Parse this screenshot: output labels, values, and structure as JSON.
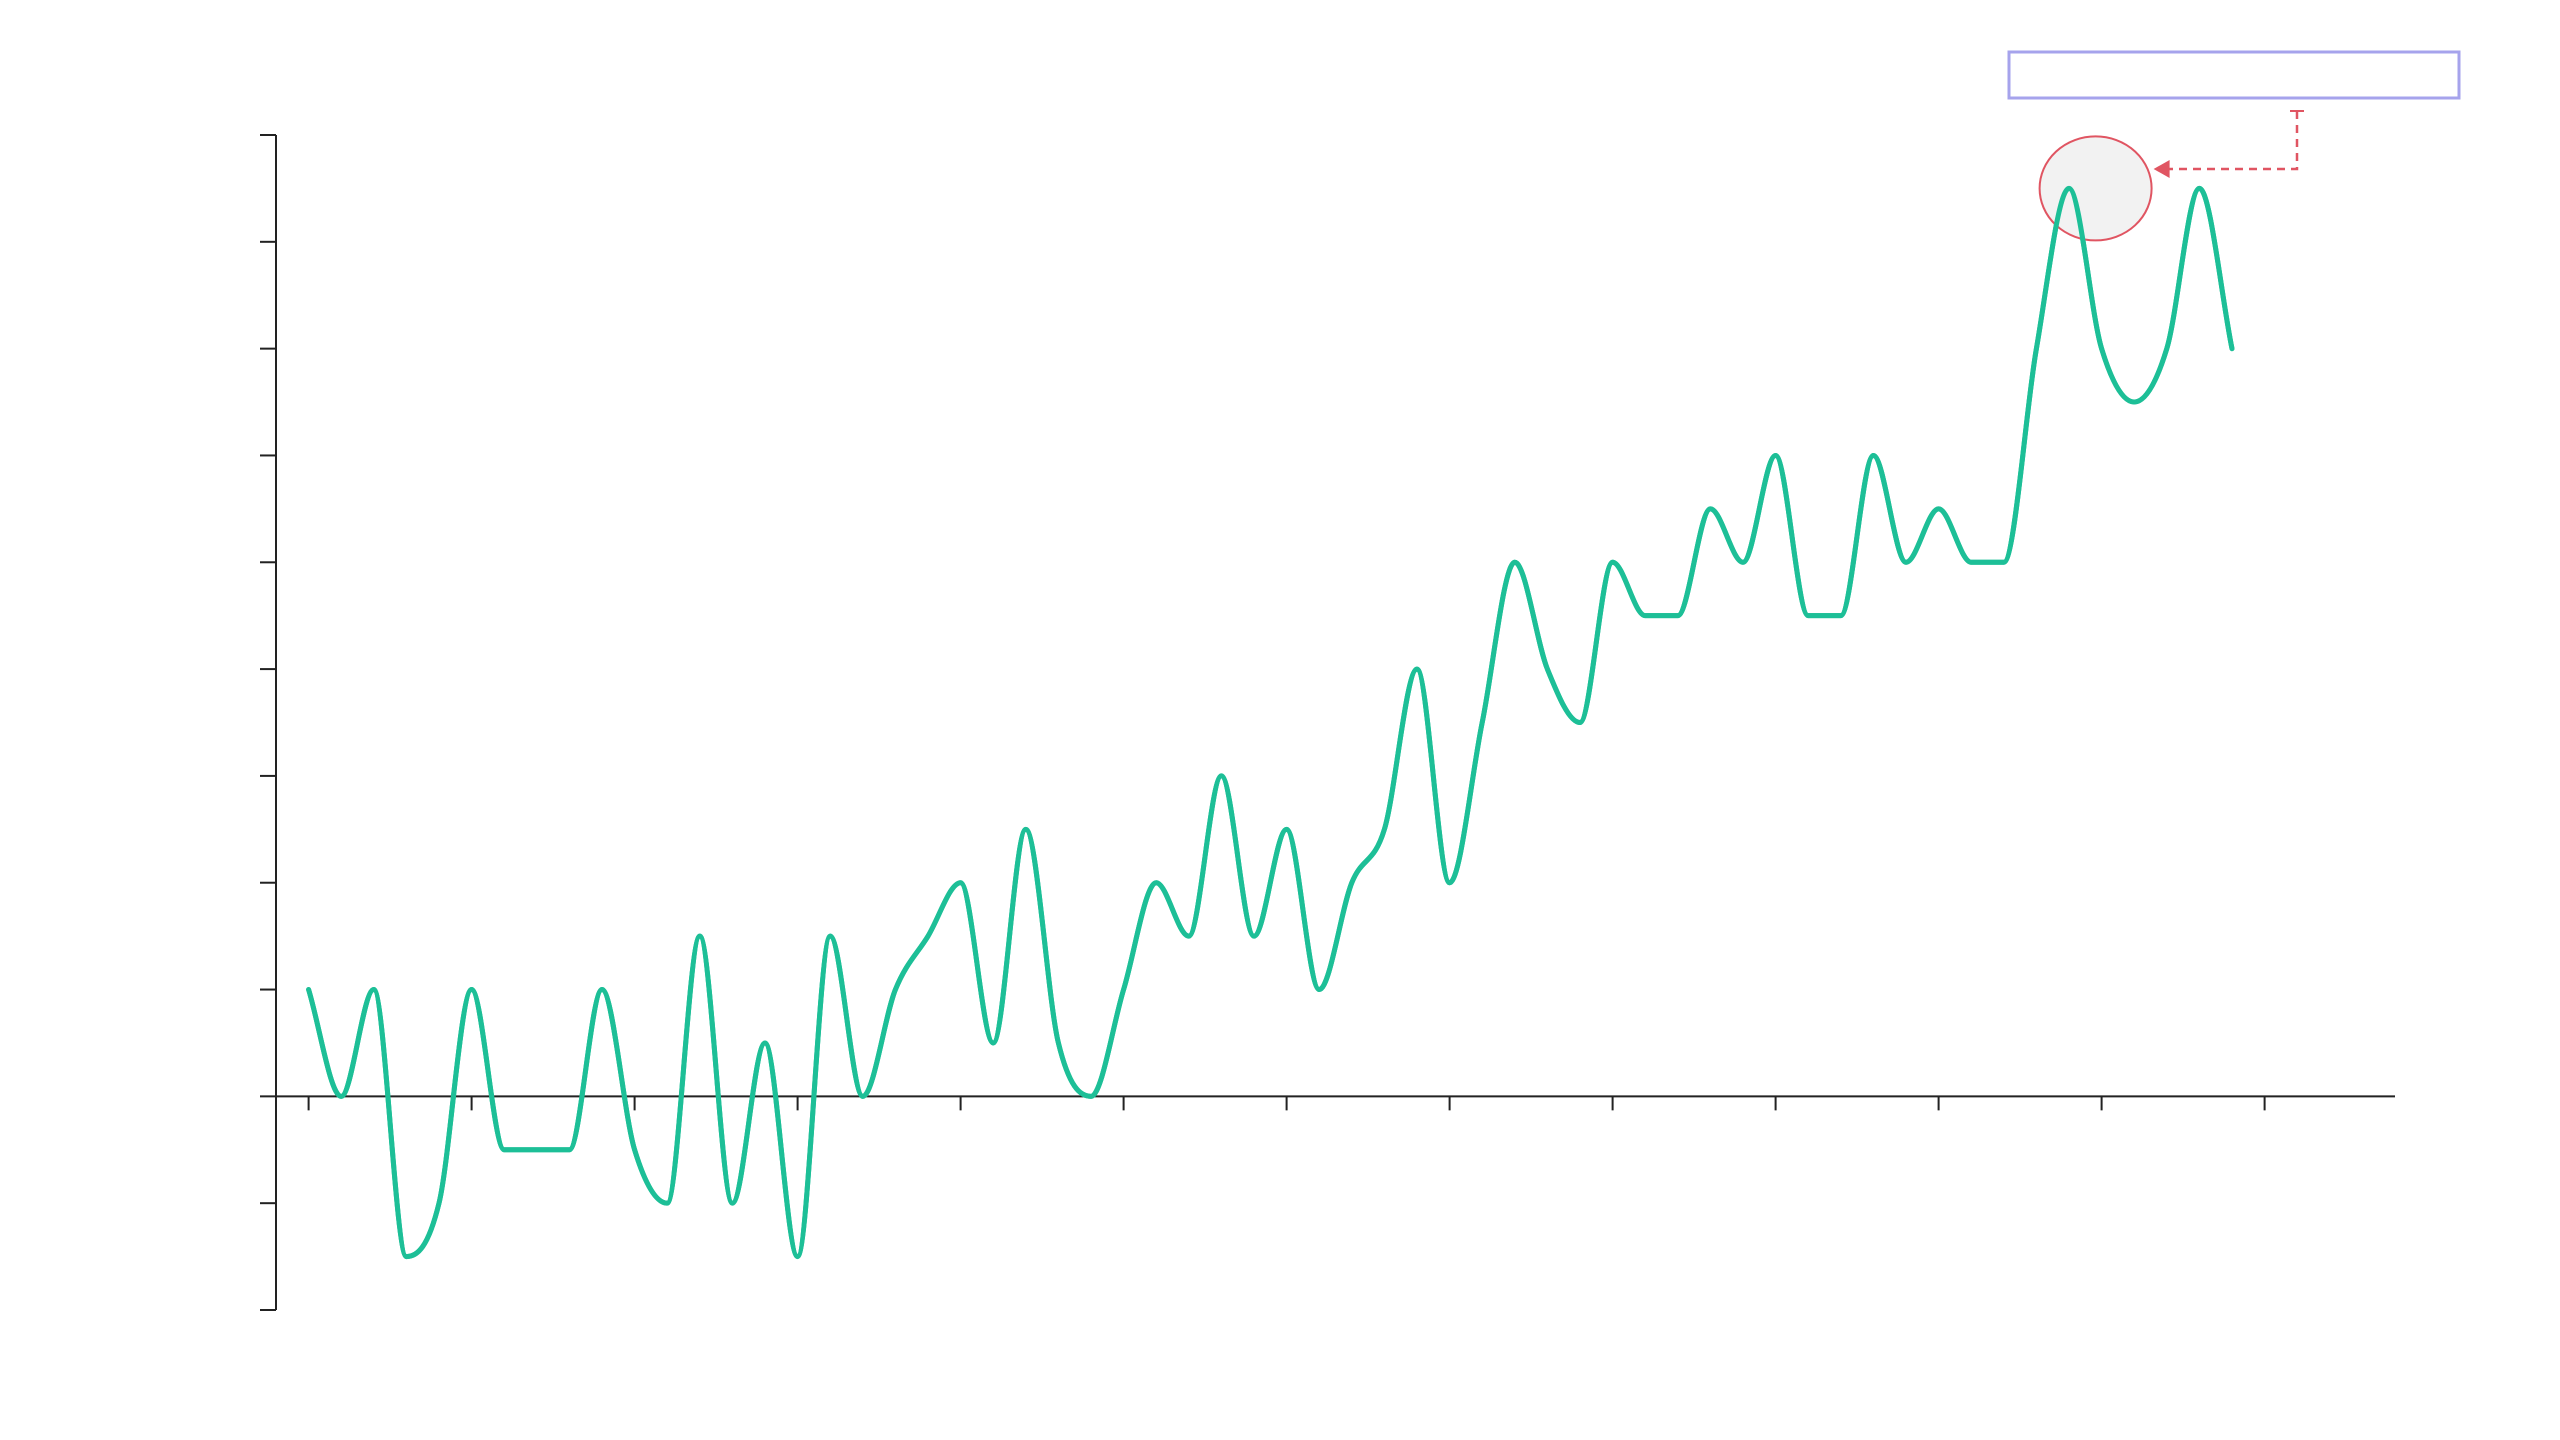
{
  "chart_data": {
    "type": "line",
    "title": "",
    "xlabel": "",
    "ylabel": "",
    "x": [
      0,
      1,
      2,
      3,
      4,
      5,
      6,
      7,
      8,
      9,
      10,
      11,
      12,
      13,
      14,
      15,
      16,
      17,
      18,
      19,
      20,
      21,
      22,
      23,
      24,
      25,
      26,
      27,
      28,
      29,
      30,
      31,
      32,
      33,
      34,
      35,
      36,
      37,
      38,
      39,
      40,
      41,
      42,
      43,
      44,
      45,
      46,
      47,
      48,
      49,
      50,
      51,
      52,
      53,
      54,
      55,
      56,
      57,
      58,
      59,
      60
    ],
    "series": [
      {
        "values": [
          2,
          0,
          2,
          -3,
          -2,
          2,
          -1,
          -1,
          -1,
          2,
          -1,
          -2,
          3,
          -2,
          1,
          -3,
          3,
          0,
          2,
          3,
          4,
          1,
          5,
          1,
          0,
          2,
          4,
          3,
          6,
          3,
          5,
          2,
          4,
          5,
          8,
          4,
          7,
          10,
          8,
          7,
          10,
          9,
          9,
          11,
          10,
          12,
          9,
          9,
          12,
          10,
          11,
          10,
          10,
          14,
          17,
          14,
          13,
          14,
          17,
          14,
          null
        ],
        "color": "#1dbf97"
      }
    ],
    "xlim": [
      -1,
      64
    ],
    "ylim": [
      -4,
      18
    ],
    "x_ticks": [
      0,
      5,
      10,
      15,
      20,
      25,
      30,
      35,
      40,
      45,
      50,
      55,
      60,
      65
    ],
    "y_ticks": [
      -4,
      -2,
      0,
      2,
      4,
      6,
      8,
      10,
      12,
      14,
      16,
      18
    ],
    "tick_labels_visible": false,
    "grid": false,
    "annotation": {
      "text": "",
      "target_x": 55,
      "target_y": 17,
      "highlight_fill": "#f0f0f0",
      "highlight_stroke": "#e05562",
      "arrow_color": "#e05562",
      "box_stroke": "#a6a3ec"
    }
  }
}
